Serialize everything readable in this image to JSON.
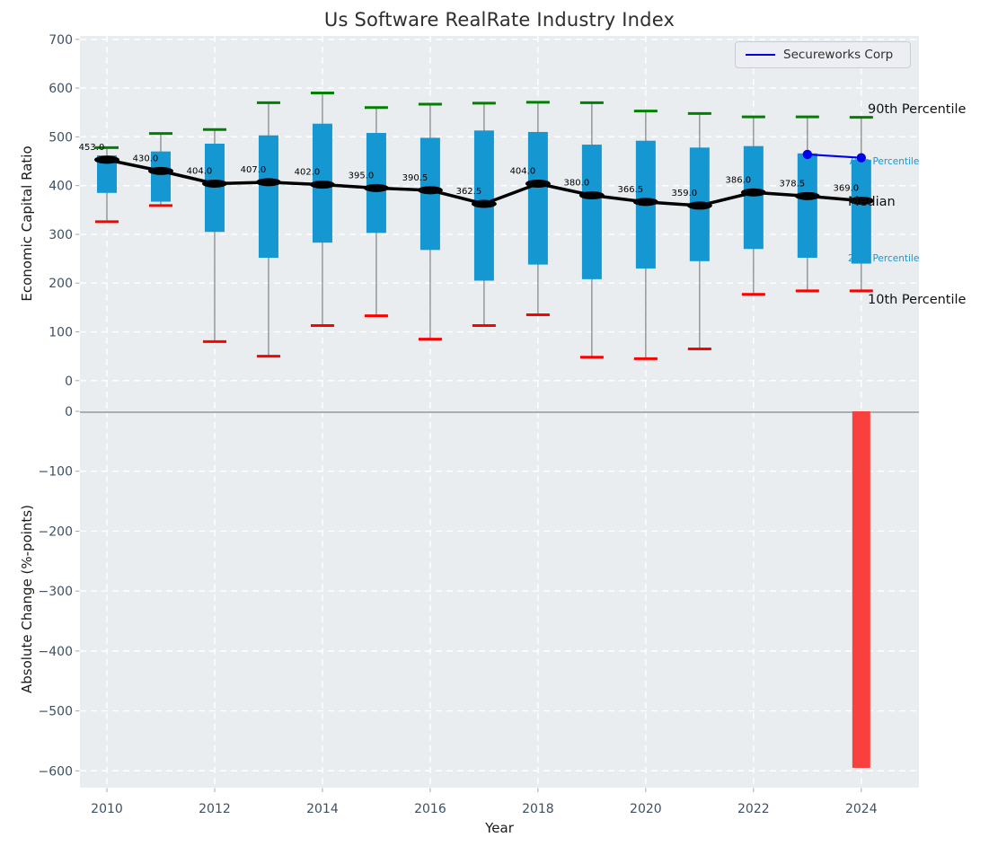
{
  "chart_data": [
    {
      "type": "boxplot",
      "title": "Us Software RealRate Industry Index",
      "xlabel": "Year",
      "ylabel": "Economic Capital Ratio",
      "xlim": [
        2009.5,
        2025.07
      ],
      "ylim": [
        -63,
        707
      ],
      "yticks": [
        0,
        100,
        200,
        300,
        400,
        500,
        600,
        700
      ],
      "xticks": [
        2010,
        2012,
        2014,
        2016,
        2018,
        2020,
        2022,
        2024
      ],
      "grid": true,
      "legend_position": "upper right",
      "years": [
        2010,
        2011,
        2012,
        2013,
        2014,
        2015,
        2016,
        2017,
        2018,
        2019,
        2020,
        2021,
        2022,
        2023,
        2024
      ],
      "percentile_90": [
        478,
        507,
        515,
        570,
        590,
        560,
        567,
        569,
        571,
        570,
        553,
        548,
        541,
        541,
        540
      ],
      "percentile_75": [
        462,
        470,
        486,
        503,
        527,
        508,
        498,
        513,
        510,
        484,
        492,
        478,
        481,
        466,
        453
      ],
      "median": [
        453.0,
        430.0,
        404.0,
        407.0,
        402.0,
        395.0,
        390.5,
        362.5,
        404.0,
        380.0,
        366.5,
        359.0,
        386.0,
        378.5,
        369.0
      ],
      "percentile_25": [
        385,
        367,
        305,
        252,
        283,
        303,
        268,
        205,
        238,
        208,
        230,
        245,
        270,
        252,
        240
      ],
      "percentile_10": [
        326,
        359,
        80,
        50,
        113,
        133,
        85,
        113,
        135,
        48,
        45,
        65,
        177,
        184,
        184
      ],
      "median_labels": [
        "453.0",
        "430.0",
        "404.0",
        "407.0",
        "402.0",
        "395.0",
        "390.5",
        "362.5",
        "404.0",
        "380.0",
        "366.5",
        "359.0",
        "386.0",
        "378.5",
        "369.0"
      ],
      "series": [
        {
          "name": "Secureworks Corp",
          "x": [
            2023,
            2024
          ],
          "y": [
            464,
            457
          ],
          "color": "#0000ee"
        }
      ],
      "legend": {
        "entries": [
          {
            "label": "Secureworks Corp",
            "color": "#0000ee"
          }
        ]
      },
      "annotations": {
        "p90": {
          "text": "90th Percentile",
          "color": "#111111"
        },
        "p75": {
          "text": "75th Percentile",
          "color": "#1598d2"
        },
        "median": {
          "text": "Median",
          "color": "#111111"
        },
        "p25": {
          "text": "25th Percentile",
          "color": "#1598d2"
        },
        "p10": {
          "text": "10th Percentile",
          "color": "#111111"
        }
      },
      "colors": {
        "box": "#1598d2",
        "p90_cap": "#008000",
        "p10_cap": "#ff0000",
        "median_line": "#000000",
        "whisker": "#808080",
        "background": "#e9edf0",
        "grid": "#ffffff",
        "tick_label": "#3e5066"
      }
    },
    {
      "type": "bar",
      "ylabel": "Absolute Change (%-points)",
      "ylim": [
        -628,
        0
      ],
      "yticks": [
        0,
        -100,
        -200,
        -300,
        -400,
        -500,
        -600
      ],
      "bars": [
        {
          "x": 2024,
          "value": -595
        }
      ],
      "bar_color": "#f8413e",
      "zero_line_color": "#a9aeb4",
      "background": "#e9edf0",
      "grid": true
    }
  ]
}
